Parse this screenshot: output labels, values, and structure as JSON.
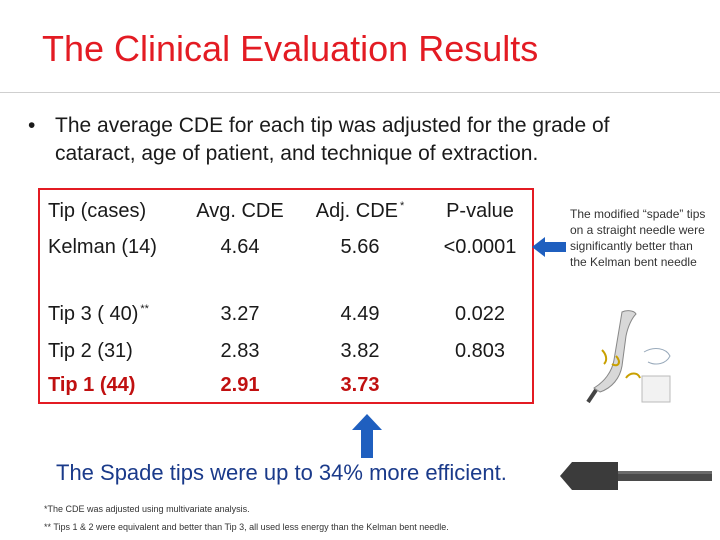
{
  "slide": {
    "title": "The Clinical Evaluation Results",
    "bullet_marker": "•",
    "bullet": "The average CDE for each tip was adjusted for the grade of cataract, age of patient, and technique of extraction."
  },
  "table": {
    "headers": [
      "Tip (cases)",
      "Avg. CDE",
      "Adj. CDE",
      "P-value"
    ],
    "header_star": "*",
    "rows": [
      {
        "tip": "Kelman (14)",
        "avg": "4.64",
        "adj": "5.66",
        "p": "<0.0001"
      },
      {
        "tip": "Tip 3 ( 40)",
        "tip_star": "**",
        "avg": "3.27",
        "adj": "4.49",
        "p": "0.022"
      },
      {
        "tip": "Tip 2 (31)",
        "avg": "2.83",
        "adj": "3.82",
        "p": "0.803"
      },
      {
        "tip": "Tip 1 (44)",
        "avg": "2.91",
        "adj": "3.73",
        "p": ""
      }
    ]
  },
  "side_note": "The modified “spade” tips on a straight needle were significantly  better than the Kelman bent needle",
  "conclusion": "The Spade tips were up to 34% more efficient.",
  "footnotes": [
    "*The CDE was adjusted using multivariate analysis.",
    "** Tips 1 & 2 were equivalent and better than Tip 3, all used less energy than the Kelman bent needle."
  ],
  "colors": {
    "title": "#e31b23",
    "table_border": "#e31b23",
    "highlight": "#c01010",
    "arrow": "#1f5fbf",
    "conclusion": "#1a3a8a"
  }
}
